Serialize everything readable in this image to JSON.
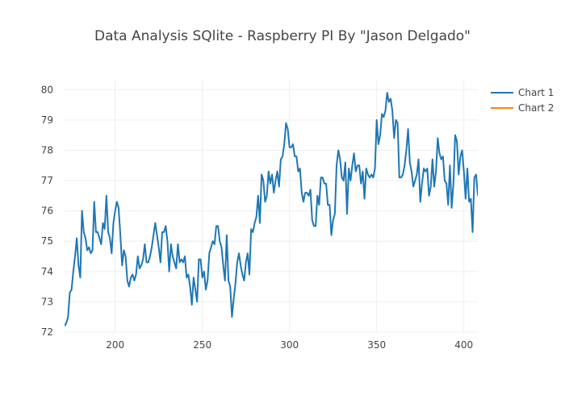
{
  "chart_data": {
    "type": "line",
    "title": "Data Analysis SQlite - Raspberry PI By \"Jason Delgado\"",
    "xlabel": "",
    "ylabel": "",
    "xlim": [
      171,
      408
    ],
    "ylim": [
      72,
      80.3
    ],
    "grid": true,
    "legend_position": "top-right",
    "x_ticks": [
      200,
      250,
      300,
      350,
      400
    ],
    "y_ticks": [
      72,
      73,
      74,
      75,
      76,
      77,
      78,
      79,
      80
    ],
    "series": [
      {
        "name": "Chart 1",
        "color": "#1f77b4",
        "points": [
          [
            171,
            72.2
          ],
          [
            172,
            72.3
          ],
          [
            173,
            72.5
          ],
          [
            174,
            73.3
          ],
          [
            175,
            73.4
          ],
          [
            176,
            74.0
          ],
          [
            177,
            74.5
          ],
          [
            178,
            75.1
          ],
          [
            179,
            74.2
          ],
          [
            180,
            73.8
          ],
          [
            181,
            76.0
          ],
          [
            182,
            75.3
          ],
          [
            183,
            75.1
          ],
          [
            184,
            74.7
          ],
          [
            185,
            74.8
          ],
          [
            186,
            74.6
          ],
          [
            187,
            74.7
          ],
          [
            188,
            76.3
          ],
          [
            189,
            75.3
          ],
          [
            190,
            75.3
          ],
          [
            191,
            75.1
          ],
          [
            192,
            74.9
          ],
          [
            193,
            75.6
          ],
          [
            194,
            75.4
          ],
          [
            195,
            76.5
          ],
          [
            196,
            75.3
          ],
          [
            197,
            75.1
          ],
          [
            198,
            74.6
          ],
          [
            199,
            75.6
          ],
          [
            200,
            76.0
          ],
          [
            201,
            76.3
          ],
          [
            202,
            76.1
          ],
          [
            203,
            75.2
          ],
          [
            204,
            74.2
          ],
          [
            205,
            74.7
          ],
          [
            206,
            74.5
          ],
          [
            207,
            73.7
          ],
          [
            208,
            73.5
          ],
          [
            209,
            73.8
          ],
          [
            210,
            73.9
          ],
          [
            211,
            73.7
          ],
          [
            212,
            73.9
          ],
          [
            213,
            74.5
          ],
          [
            214,
            74.1
          ],
          [
            215,
            74.2
          ],
          [
            216,
            74.4
          ],
          [
            217,
            74.9
          ],
          [
            218,
            74.3
          ],
          [
            219,
            74.3
          ],
          [
            220,
            74.5
          ],
          [
            221,
            74.8
          ],
          [
            222,
            75.2
          ],
          [
            223,
            75.6
          ],
          [
            224,
            75.2
          ],
          [
            225,
            74.8
          ],
          [
            226,
            74.3
          ],
          [
            227,
            75.3
          ],
          [
            228,
            75.3
          ],
          [
            229,
            75.5
          ],
          [
            230,
            75.0
          ],
          [
            231,
            74.0
          ],
          [
            232,
            74.9
          ],
          [
            233,
            74.5
          ],
          [
            234,
            74.3
          ],
          [
            235,
            74.1
          ],
          [
            236,
            74.9
          ],
          [
            237,
            74.3
          ],
          [
            238,
            74.4
          ],
          [
            239,
            74.3
          ],
          [
            240,
            74.5
          ],
          [
            241,
            73.8
          ],
          [
            242,
            73.9
          ],
          [
            243,
            73.5
          ],
          [
            244,
            72.9
          ],
          [
            245,
            73.8
          ],
          [
            246,
            73.4
          ],
          [
            247,
            73.0
          ],
          [
            248,
            74.4
          ],
          [
            249,
            74.4
          ],
          [
            250,
            73.8
          ],
          [
            251,
            74.0
          ],
          [
            252,
            73.4
          ],
          [
            253,
            73.7
          ],
          [
            254,
            74.6
          ],
          [
            255,
            74.8
          ],
          [
            256,
            75.0
          ],
          [
            257,
            74.9
          ],
          [
            258,
            75.5
          ],
          [
            259,
            75.5
          ],
          [
            260,
            75.0
          ],
          [
            261,
            74.8
          ],
          [
            262,
            74.2
          ],
          [
            263,
            73.7
          ],
          [
            264,
            75.2
          ],
          [
            265,
            73.7
          ],
          [
            266,
            73.5
          ],
          [
            267,
            72.5
          ],
          [
            268,
            73.1
          ],
          [
            269,
            73.6
          ],
          [
            270,
            74.3
          ],
          [
            271,
            74.6
          ],
          [
            272,
            74.2
          ],
          [
            273,
            73.9
          ],
          [
            274,
            73.7
          ],
          [
            275,
            74.3
          ],
          [
            276,
            74.6
          ],
          [
            277,
            73.9
          ],
          [
            278,
            75.4
          ],
          [
            279,
            75.3
          ],
          [
            280,
            75.6
          ],
          [
            281,
            75.8
          ],
          [
            282,
            76.5
          ],
          [
            283,
            75.6
          ],
          [
            284,
            77.2
          ],
          [
            285,
            77.0
          ],
          [
            286,
            76.3
          ],
          [
            287,
            76.5
          ],
          [
            288,
            77.3
          ],
          [
            289,
            76.9
          ],
          [
            290,
            77.2
          ],
          [
            291,
            76.6
          ],
          [
            292,
            77.0
          ],
          [
            293,
            77.3
          ],
          [
            294,
            76.8
          ],
          [
            295,
            77.7
          ],
          [
            296,
            77.8
          ],
          [
            297,
            78.2
          ],
          [
            298,
            78.9
          ],
          [
            299,
            78.7
          ],
          [
            300,
            78.1
          ],
          [
            301,
            78.1
          ],
          [
            302,
            78.2
          ],
          [
            303,
            77.8
          ],
          [
            304,
            77.8
          ],
          [
            305,
            77.3
          ],
          [
            306,
            77.4
          ],
          [
            307,
            76.6
          ],
          [
            308,
            76.3
          ],
          [
            309,
            76.6
          ],
          [
            310,
            76.6
          ],
          [
            311,
            76.5
          ],
          [
            312,
            76.7
          ],
          [
            313,
            75.7
          ],
          [
            314,
            75.5
          ],
          [
            315,
            75.5
          ],
          [
            316,
            76.5
          ],
          [
            317,
            76.2
          ],
          [
            318,
            77.1
          ],
          [
            319,
            77.1
          ],
          [
            320,
            76.9
          ],
          [
            321,
            76.9
          ],
          [
            322,
            76.2
          ],
          [
            323,
            76.2
          ],
          [
            324,
            75.2
          ],
          [
            325,
            75.7
          ],
          [
            326,
            75.9
          ],
          [
            327,
            77.5
          ],
          [
            328,
            78.0
          ],
          [
            329,
            77.7
          ],
          [
            330,
            77.1
          ],
          [
            331,
            77.0
          ],
          [
            332,
            77.6
          ],
          [
            333,
            75.9
          ],
          [
            334,
            77.4
          ],
          [
            335,
            77.0
          ],
          [
            336,
            77.5
          ],
          [
            337,
            77.9
          ],
          [
            338,
            77.3
          ],
          [
            339,
            77.5
          ],
          [
            340,
            77.5
          ],
          [
            341,
            76.9
          ],
          [
            342,
            77.3
          ],
          [
            343,
            76.4
          ],
          [
            344,
            77.4
          ],
          [
            345,
            77.2
          ],
          [
            346,
            77.1
          ],
          [
            347,
            77.2
          ],
          [
            348,
            77.1
          ],
          [
            349,
            77.4
          ],
          [
            350,
            79.0
          ],
          [
            351,
            78.2
          ],
          [
            352,
            78.5
          ],
          [
            353,
            79.2
          ],
          [
            354,
            79.1
          ],
          [
            355,
            79.3
          ],
          [
            356,
            79.9
          ],
          [
            357,
            79.6
          ],
          [
            358,
            79.7
          ],
          [
            359,
            79.3
          ],
          [
            360,
            78.4
          ],
          [
            361,
            79.0
          ],
          [
            362,
            78.9
          ],
          [
            363,
            77.1
          ],
          [
            364,
            77.1
          ],
          [
            365,
            77.2
          ],
          [
            366,
            77.5
          ],
          [
            367,
            78.0
          ],
          [
            368,
            78.7
          ],
          [
            369,
            77.6
          ],
          [
            370,
            77.3
          ],
          [
            371,
            76.8
          ],
          [
            372,
            77.0
          ],
          [
            373,
            77.2
          ],
          [
            374,
            77.7
          ],
          [
            375,
            76.3
          ],
          [
            376,
            76.9
          ],
          [
            377,
            77.4
          ],
          [
            378,
            77.3
          ],
          [
            379,
            77.4
          ],
          [
            380,
            76.5
          ],
          [
            381,
            76.8
          ],
          [
            382,
            77.7
          ],
          [
            383,
            76.8
          ],
          [
            384,
            77.3
          ],
          [
            385,
            78.4
          ],
          [
            386,
            77.9
          ],
          [
            387,
            77.7
          ],
          [
            388,
            77.8
          ],
          [
            389,
            77.0
          ],
          [
            390,
            76.9
          ],
          [
            391,
            76.2
          ],
          [
            392,
            77.5
          ],
          [
            393,
            76.1
          ],
          [
            394,
            76.9
          ],
          [
            395,
            78.5
          ],
          [
            396,
            78.3
          ],
          [
            397,
            77.2
          ],
          [
            398,
            77.8
          ],
          [
            399,
            78.0
          ],
          [
            400,
            77.3
          ],
          [
            401,
            76.4
          ],
          [
            402,
            77.4
          ],
          [
            403,
            76.3
          ],
          [
            404,
            76.4
          ],
          [
            405,
            75.3
          ],
          [
            406,
            77.1
          ],
          [
            407,
            77.2
          ],
          [
            408,
            76.5
          ]
        ]
      },
      {
        "name": "Chart 2",
        "color": "#ff7f0e",
        "points": []
      }
    ]
  }
}
